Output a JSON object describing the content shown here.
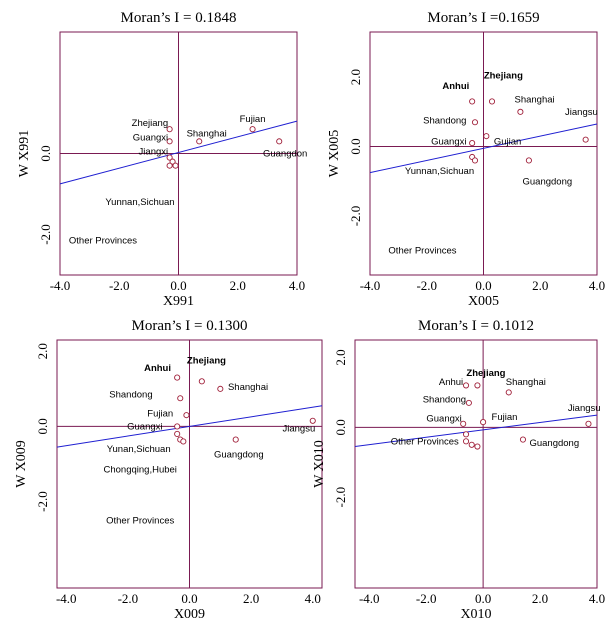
{
  "chart_data": [
    {
      "type": "scatter",
      "title": "Moran’s I = 0.1848",
      "xlabel": "X991",
      "ylabel": "W X991",
      "xlim": [
        -4.0,
        4.0
      ],
      "ylim": [
        -3.0,
        3.0
      ],
      "xticks": [
        "-4.0",
        "-2.0",
        "0.0",
        "2.0",
        "4.0"
      ],
      "yticks": [
        "-2.0",
        "0.0"
      ],
      "xtick_values": [
        -4,
        -2,
        0,
        2,
        4
      ],
      "ytick_values": [
        -2,
        0
      ],
      "points": [
        [
          -0.3,
          0.6
        ],
        [
          -0.3,
          0.3
        ],
        [
          -0.3,
          -0.1
        ],
        [
          -0.2,
          -0.2
        ],
        [
          -0.3,
          -0.3
        ],
        [
          -0.1,
          -0.3
        ],
        [
          0.7,
          0.3
        ],
        [
          2.5,
          0.6
        ],
        [
          3.4,
          0.3
        ]
      ],
      "fit_line": [
        [
          -4.0,
          -0.75
        ],
        [
          4.0,
          0.8
        ]
      ],
      "labels": [
        {
          "text": "Zhejiang",
          "x": -0.35,
          "y": 0.75,
          "anchor": "end",
          "bold": false
        },
        {
          "text": "Guangxi",
          "x": -0.35,
          "y": 0.4,
          "anchor": "end",
          "bold": false
        },
        {
          "text": "Jiangxi",
          "x": -0.35,
          "y": 0.05,
          "anchor": "end",
          "bold": false
        },
        {
          "text": "Shanghai",
          "x": 0.95,
          "y": 0.5,
          "anchor": "middle",
          "bold": false
        },
        {
          "text": "Fujian",
          "x": 2.5,
          "y": 0.85,
          "anchor": "middle",
          "bold": false
        },
        {
          "text": "Guangdon",
          "x": 3.6,
          "y": 0.0,
          "anchor": "middle",
          "bold": false
        },
        {
          "text": "Yunnan,Sichuan",
          "x": -1.3,
          "y": -1.2,
          "anchor": "middle",
          "bold": false
        },
        {
          "text": "Other Provinces",
          "x": -2.55,
          "y": -2.15,
          "anchor": "middle",
          "bold": false
        }
      ]
    },
    {
      "type": "scatter",
      "title": "Moran’s I =0.1659",
      "xlabel": "X005",
      "ylabel": "W X005",
      "xlim": [
        -4.0,
        4.0
      ],
      "ylim": [
        -3.7,
        3.3
      ],
      "xticks": [
        "-4.0",
        "-2.0",
        "0.0",
        "2.0",
        "4.0"
      ],
      "yticks": [
        "-2.0",
        "0.0",
        "2.0"
      ],
      "xtick_values": [
        -4,
        -2,
        0,
        2,
        4
      ],
      "ytick_values": [
        -2,
        0,
        2
      ],
      "points": [
        [
          -0.4,
          1.3
        ],
        [
          0.3,
          1.3
        ],
        [
          1.3,
          1.0
        ],
        [
          3.6,
          0.2
        ],
        [
          -0.3,
          0.7
        ],
        [
          -0.4,
          0.1
        ],
        [
          0.1,
          0.3
        ],
        [
          -0.4,
          -0.3
        ],
        [
          -0.3,
          -0.4
        ],
        [
          1.6,
          -0.4
        ]
      ],
      "fit_line": [
        [
          -4.0,
          -0.75
        ],
        [
          4.0,
          0.65
        ]
      ],
      "labels": [
        {
          "text": "Anhui",
          "x": -0.5,
          "y": 1.75,
          "anchor": "end",
          "bold": true
        },
        {
          "text": "Zhejiang",
          "x": 0.7,
          "y": 2.05,
          "anchor": "middle",
          "bold": true
        },
        {
          "text": "Shanghai",
          "x": 1.8,
          "y": 1.35,
          "anchor": "middle",
          "bold": false
        },
        {
          "text": "Jiangsu",
          "x": 3.45,
          "y": 1.0,
          "anchor": "middle",
          "bold": false
        },
        {
          "text": "Shandong",
          "x": -0.6,
          "y": 0.75,
          "anchor": "end",
          "bold": false
        },
        {
          "text": "Guangxi",
          "x": -0.6,
          "y": 0.15,
          "anchor": "end",
          "bold": false
        },
        {
          "text": "Gujian",
          "x": 0.85,
          "y": 0.15,
          "anchor": "middle",
          "bold": false
        },
        {
          "text": "Yunnan,Sichuan",
          "x": -1.55,
          "y": -0.7,
          "anchor": "middle",
          "bold": false
        },
        {
          "text": "Guangdong",
          "x": 2.25,
          "y": -1.0,
          "anchor": "middle",
          "bold": false
        },
        {
          "text": "Other Provinces",
          "x": -2.15,
          "y": -3.0,
          "anchor": "middle",
          "bold": false
        }
      ]
    },
    {
      "type": "scatter",
      "title": "Moran’s I = 0.1300",
      "xlabel": "X009",
      "ylabel": "W X009",
      "xlim": [
        -4.3,
        4.3
      ],
      "ylim": [
        -4.3,
        2.3
      ],
      "xticks": [
        "-4.0",
        "-2.0",
        "0.0",
        "2.0",
        "4.0"
      ],
      "yticks": [
        "-2.0",
        "0.0",
        "2.0"
      ],
      "xtick_values": [
        -4,
        -2,
        0,
        2,
        4
      ],
      "ytick_values": [
        -2,
        0,
        2
      ],
      "points": [
        [
          -0.4,
          1.3
        ],
        [
          0.4,
          1.2
        ],
        [
          1.0,
          1.0
        ],
        [
          -0.3,
          0.75
        ],
        [
          -0.1,
          0.3
        ],
        [
          -0.4,
          0.0
        ],
        [
          -0.4,
          -0.2
        ],
        [
          -0.3,
          -0.35
        ],
        [
          -0.2,
          -0.4
        ],
        [
          1.5,
          -0.35
        ],
        [
          4.0,
          0.15
        ]
      ],
      "fit_line": [
        [
          -4.3,
          -0.55
        ],
        [
          4.3,
          0.55
        ]
      ],
      "labels": [
        {
          "text": "Anhui",
          "x": -0.6,
          "y": 1.55,
          "anchor": "end",
          "bold": true
        },
        {
          "text": "Zhejiang",
          "x": 0.55,
          "y": 1.75,
          "anchor": "middle",
          "bold": true
        },
        {
          "text": "Shanghai",
          "x": 1.9,
          "y": 1.05,
          "anchor": "middle",
          "bold": false
        },
        {
          "text": "Shandong",
          "x": -1.9,
          "y": 0.85,
          "anchor": "middle",
          "bold": false
        },
        {
          "text": "Fujian",
          "x": -0.95,
          "y": 0.35,
          "anchor": "middle",
          "bold": false
        },
        {
          "text": "Guangxi",
          "x": -1.45,
          "y": 0.0,
          "anchor": "middle",
          "bold": false
        },
        {
          "text": "Jiangsu",
          "x": 3.55,
          "y": -0.05,
          "anchor": "middle",
          "bold": false
        },
        {
          "text": "Yunan,Sichuan",
          "x": -1.65,
          "y": -0.6,
          "anchor": "middle",
          "bold": false
        },
        {
          "text": "Guangdong",
          "x": 1.6,
          "y": -0.75,
          "anchor": "middle",
          "bold": false
        },
        {
          "text": "Chongqing,Hubei",
          "x": -1.6,
          "y": -1.15,
          "anchor": "middle",
          "bold": false
        },
        {
          "text": "Other Provinces",
          "x": -1.6,
          "y": -2.5,
          "anchor": "middle",
          "bold": false
        }
      ]
    },
    {
      "type": "scatter",
      "title": "Moran’s I = 0.1012",
      "xlabel": "X010",
      "ylabel": "W X010",
      "xlim": [
        -4.5,
        4.0
      ],
      "ylim": [
        -4.6,
        2.5
      ],
      "xticks": [
        "-4.0",
        "-2.0",
        "0.0",
        "2.0",
        "4.0"
      ],
      "yticks": [
        "-2.0",
        "0.0",
        "2.0"
      ],
      "xtick_values": [
        -4,
        -2,
        0,
        2,
        4
      ],
      "ytick_values": [
        -2,
        0,
        2
      ],
      "points": [
        [
          -0.6,
          1.2
        ],
        [
          -0.2,
          1.2
        ],
        [
          0.9,
          1.0
        ],
        [
          -0.5,
          0.7
        ],
        [
          -0.7,
          0.1
        ],
        [
          0.0,
          0.15
        ],
        [
          -0.6,
          -0.2
        ],
        [
          -0.6,
          -0.4
        ],
        [
          -0.4,
          -0.5
        ],
        [
          -0.2,
          -0.55
        ],
        [
          1.4,
          -0.35
        ],
        [
          3.7,
          0.1
        ]
      ],
      "fit_line": [
        [
          -4.5,
          -0.55
        ],
        [
          4.0,
          0.35
        ]
      ],
      "labels": [
        {
          "text": "Zhejiang",
          "x": 0.1,
          "y": 1.55,
          "anchor": "middle",
          "bold": true
        },
        {
          "text": "Anhui",
          "x": -0.7,
          "y": 1.3,
          "anchor": "end",
          "bold": false
        },
        {
          "text": "Shanghai",
          "x": 1.5,
          "y": 1.3,
          "anchor": "middle",
          "bold": false
        },
        {
          "text": "Shandong",
          "x": -0.6,
          "y": 0.8,
          "anchor": "end",
          "bold": false
        },
        {
          "text": "Guangxi",
          "x": -0.75,
          "y": 0.25,
          "anchor": "end",
          "bold": false
        },
        {
          "text": "Fujian",
          "x": 0.75,
          "y": 0.3,
          "anchor": "middle",
          "bold": false
        },
        {
          "text": "Jiangsu",
          "x": 3.55,
          "y": 0.55,
          "anchor": "middle",
          "bold": false
        },
        {
          "text": "Other Provinces",
          "x": -2.05,
          "y": -0.4,
          "anchor": "middle",
          "bold": false
        },
        {
          "text": "Guangdong",
          "x": 2.5,
          "y": -0.45,
          "anchor": "middle",
          "bold": false
        }
      ]
    }
  ]
}
